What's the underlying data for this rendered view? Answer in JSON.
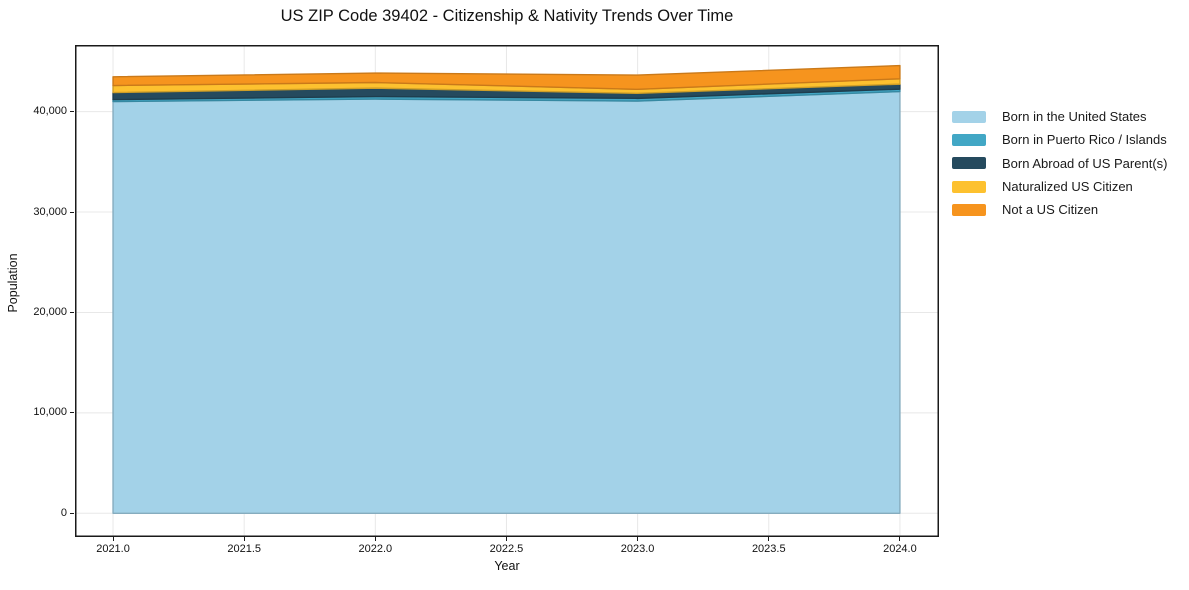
{
  "title": "US ZIP Code 39402 - Citizenship & Nativity Trends Over Time",
  "axes": {
    "x_label": "Year",
    "y_label": "Population",
    "x_tick_labels": [
      "2021.0",
      "2021.5",
      "2022.0",
      "2022.5",
      "2023.0",
      "2023.5",
      "2024.0"
    ],
    "y_tick_labels": [
      "0",
      "10,000",
      "20,000",
      "30,000",
      "40,000"
    ]
  },
  "chart_data": {
    "type": "area",
    "stacked": true,
    "title": "US ZIP Code 39402 - Citizenship & Nativity Trends Over Time",
    "xlabel": "Year",
    "ylabel": "Population",
    "x": [
      2021,
      2022,
      2023,
      2024
    ],
    "series": [
      {
        "name": "Born in the United States",
        "color": "#A3D2E8",
        "values": [
          41000,
          41250,
          41050,
          42000
        ]
      },
      {
        "name": "Born in Puerto Rico / Islands",
        "color": "#42A7C5",
        "values": [
          200,
          250,
          270,
          240
        ]
      },
      {
        "name": "Born Abroad of US Parent(s)",
        "color": "#254A5E",
        "values": [
          700,
          840,
          500,
          500
        ]
      },
      {
        "name": "Naturalized US Citizen",
        "color": "#FDC12F",
        "values": [
          700,
          560,
          400,
          530
        ]
      },
      {
        "name": "Not a US Citizen",
        "color": "#F6941E",
        "values": [
          870,
          940,
          1420,
          1320
        ]
      }
    ],
    "totals": [
      43470,
      43840,
      43640,
      44590
    ],
    "x_tick_values": [
      2021,
      2021.5,
      2022,
      2022.5,
      2023,
      2023.5,
      2024
    ],
    "y_tick_values": [
      0,
      10000,
      20000,
      30000,
      40000
    ],
    "xlim": [
      2020.855,
      2024.149
    ],
    "ylim": [
      -2360,
      46635
    ],
    "grid": true,
    "grid_color": "#e8e8e8",
    "legend_position": "right-outside"
  }
}
